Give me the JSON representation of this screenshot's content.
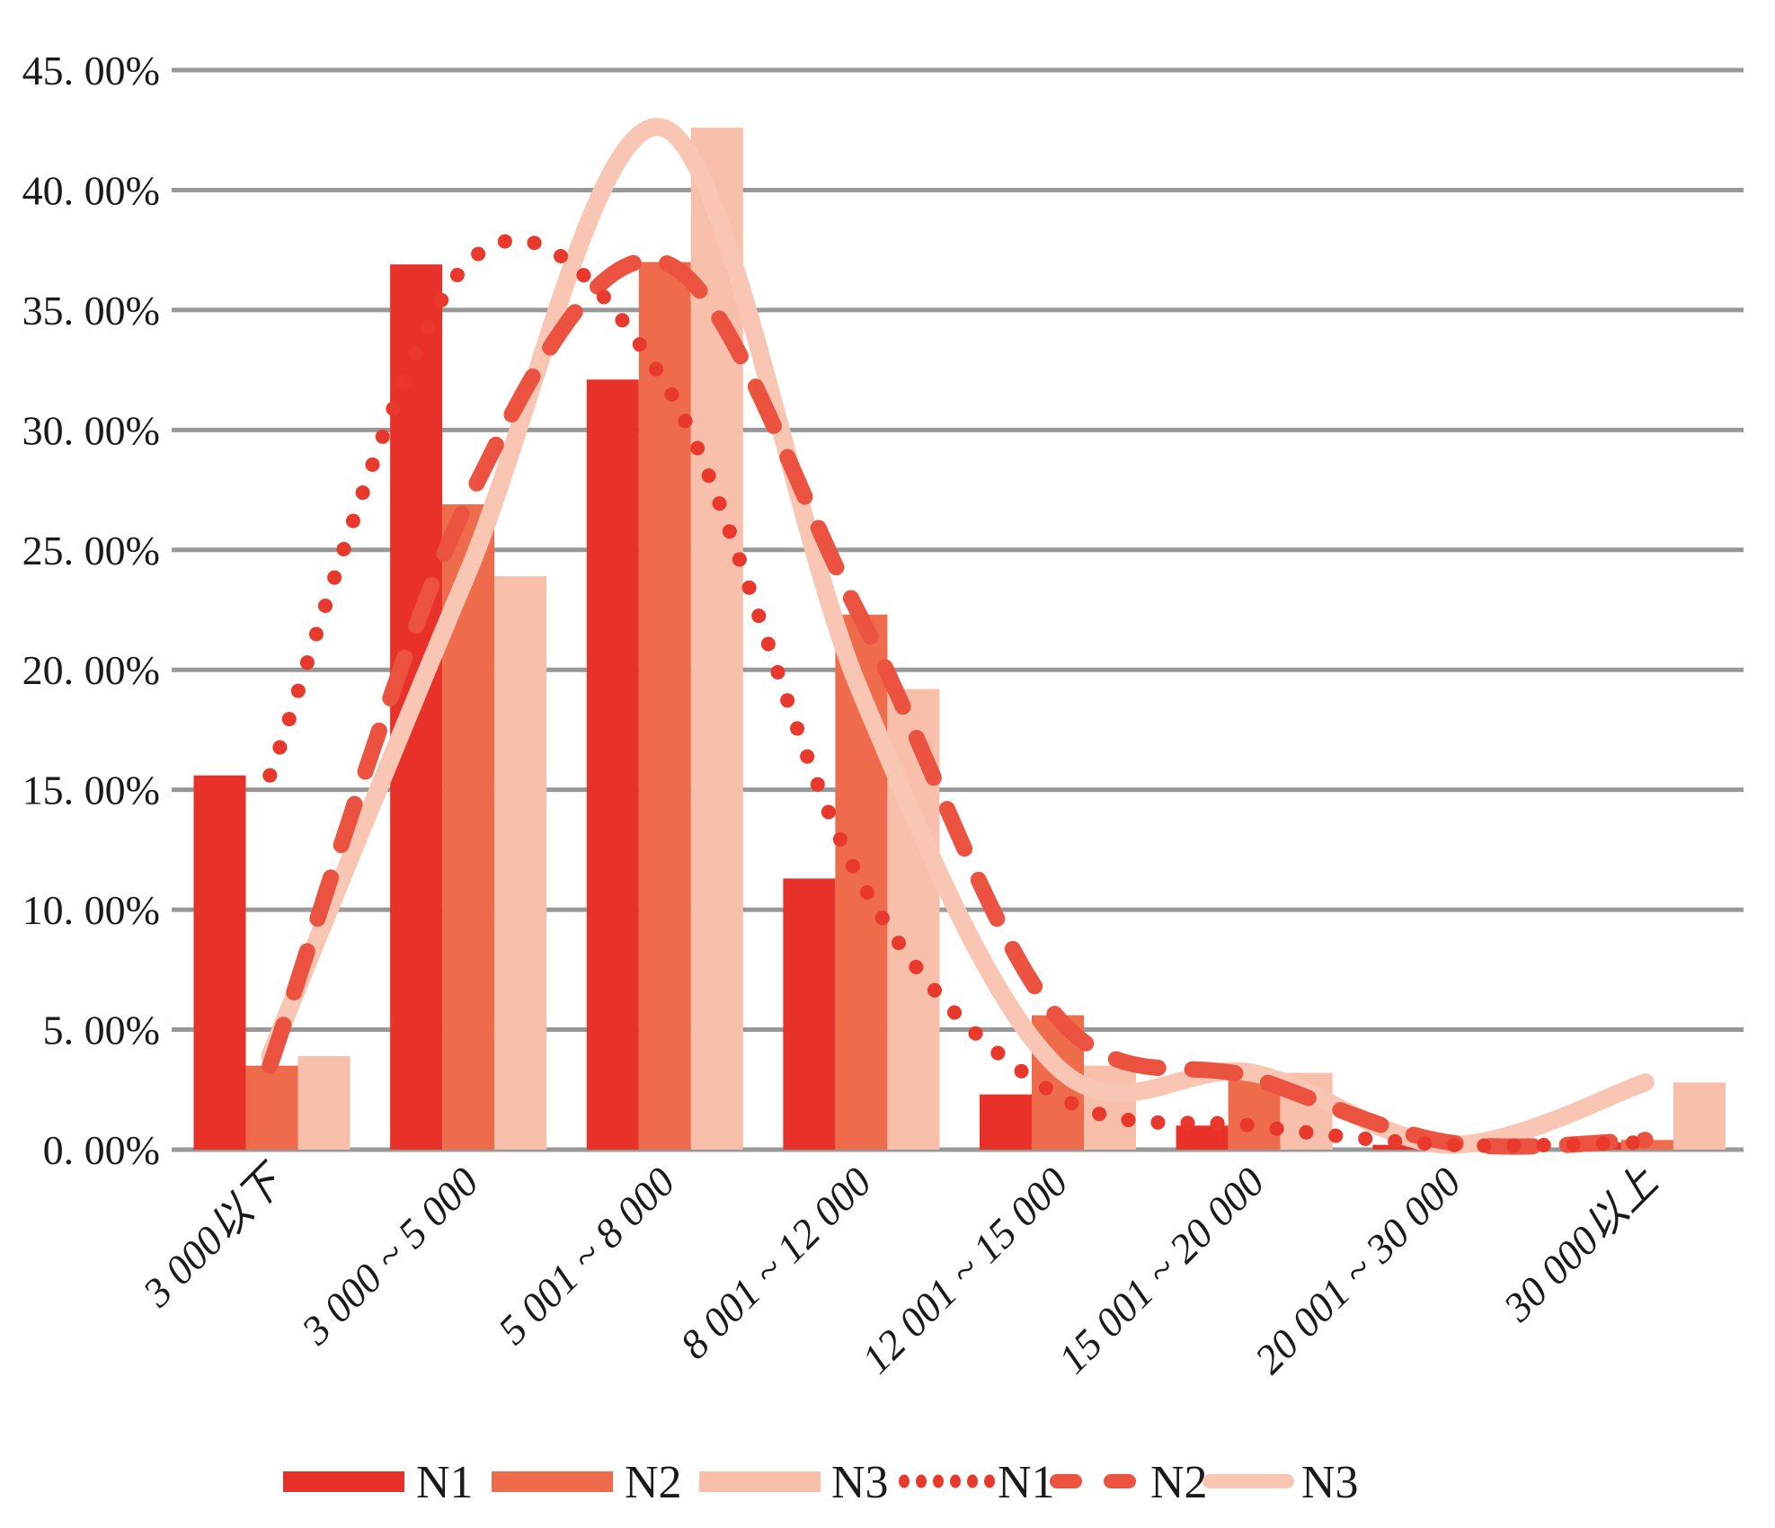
{
  "chart_data": {
    "type": "bar",
    "subtype": "grouped-bars-with-smoothed-lines",
    "title": "",
    "xlabel": "",
    "ylabel": "",
    "categories": [
      "3 000以下",
      "3 000 ~ 5 000",
      "5 001 ~ 8 000",
      "8 001 ~ 12 000",
      "12 001 ~ 15 000",
      "15 001 ~ 20 000",
      "20 001 ~ 30 000",
      "30 000以上"
    ],
    "bar_series": [
      {
        "name": "N1",
        "color": "#E73129",
        "values": [
          15.6,
          36.9,
          32.1,
          11.3,
          2.3,
          1.0,
          0.2,
          0.3
        ]
      },
      {
        "name": "N2",
        "color": "#EE6B4C",
        "values": [
          3.5,
          26.9,
          37.0,
          22.3,
          5.6,
          3.0,
          0.3,
          0.4
        ]
      },
      {
        "name": "N3",
        "color": "#F8BFAA",
        "values": [
          3.9,
          23.9,
          42.6,
          19.2,
          3.5,
          3.2,
          0.2,
          2.8
        ]
      }
    ],
    "line_series": [
      {
        "name": "N3",
        "style": "solid",
        "color": "#F8C6B2",
        "values": [
          3.9,
          23.9,
          42.6,
          19.2,
          3.5,
          3.2,
          0.2,
          2.8
        ]
      },
      {
        "name": "N2",
        "style": "dashed",
        "color": "#EB5240",
        "values": [
          3.5,
          26.9,
          37.0,
          22.3,
          5.6,
          3.0,
          0.3,
          0.4
        ]
      },
      {
        "name": "N1",
        "style": "dotted",
        "color": "#E9392D",
        "values": [
          15.6,
          36.9,
          32.1,
          11.3,
          2.3,
          1.0,
          0.2,
          0.3
        ]
      }
    ],
    "y_axis": {
      "min": 0,
      "max": 45,
      "step": 5,
      "labels": [
        "45. 00%",
        "40. 00%",
        "35. 00%",
        "30. 00%",
        "25. 00%",
        "20. 00%",
        "15. 00%",
        "10. 00%",
        "5. 00%",
        "0. 00%"
      ]
    },
    "grid": {
      "on": true,
      "color": "#989898"
    },
    "background": "#FFFFFF",
    "legend": {
      "position": "bottom",
      "items": [
        {
          "label": "N1",
          "swatch": "bar",
          "color": "#E73129"
        },
        {
          "label": "N2",
          "swatch": "bar",
          "color": "#EE6B4C"
        },
        {
          "label": "N3",
          "swatch": "bar",
          "color": "#F8BFAA"
        },
        {
          "label": "N1",
          "swatch": "dotted",
          "color": "#E9392D"
        },
        {
          "label": "N2",
          "swatch": "dashed",
          "color": "#EB5240"
        },
        {
          "label": "N3",
          "swatch": "solid",
          "color": "#F8C6B2"
        }
      ]
    }
  }
}
